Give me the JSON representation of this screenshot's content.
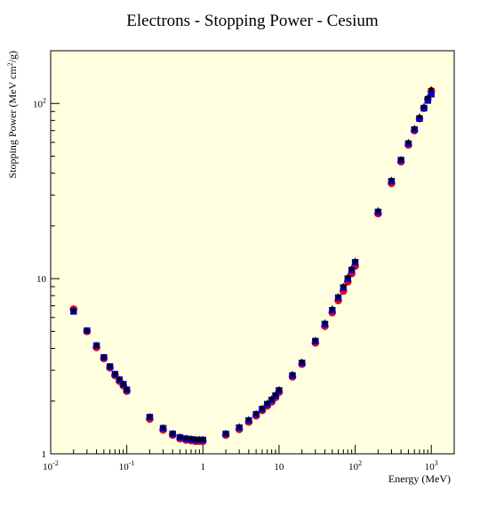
{
  "chart_data": {
    "type": "scatter",
    "title": "Electrons - Stopping Power - Cesium",
    "xlabel": "Energy (MeV)",
    "ylabel": "Stopping Power (MeV cm²/g)",
    "x_scale": "log",
    "y_scale": "log",
    "xlim": [
      0.01,
      2000
    ],
    "ylim": [
      1,
      200
    ],
    "grid": false,
    "x_tick_labels": [
      {
        "value": 0.01,
        "base": "10",
        "exp": "-2"
      },
      {
        "value": 0.1,
        "base": "10",
        "exp": "-1"
      },
      {
        "value": 1,
        "base": "1",
        "exp": ""
      },
      {
        "value": 10,
        "base": "10",
        "exp": ""
      },
      {
        "value": 100,
        "base": "10",
        "exp": "2"
      },
      {
        "value": 1000,
        "base": "10",
        "exp": "3"
      }
    ],
    "y_tick_labels": [
      {
        "value": 1,
        "base": "1",
        "exp": ""
      },
      {
        "value": 10,
        "base": "10",
        "exp": ""
      },
      {
        "value": 100,
        "base": "10",
        "exp": "2"
      }
    ],
    "series": [
      {
        "marker": "circle",
        "color": "#e8001c",
        "x": [
          0.02,
          0.03,
          0.04,
          0.05,
          0.06,
          0.07,
          0.08,
          0.09,
          0.1,
          0.2,
          0.3,
          0.4,
          0.5,
          0.6,
          0.7,
          0.8,
          0.9,
          1,
          2,
          3,
          4,
          5,
          6,
          7,
          8,
          9,
          10,
          15,
          20,
          30,
          40,
          50,
          60,
          70,
          80,
          90,
          100,
          200,
          300,
          400,
          500,
          600,
          700,
          800,
          900,
          1000
        ],
        "y": [
          6.7,
          5.0,
          4.05,
          3.5,
          3.1,
          2.8,
          2.6,
          2.45,
          2.28,
          1.58,
          1.37,
          1.28,
          1.22,
          1.2,
          1.19,
          1.18,
          1.18,
          1.18,
          1.28,
          1.38,
          1.52,
          1.65,
          1.77,
          1.88,
          1.98,
          2.1,
          2.25,
          2.75,
          3.25,
          4.3,
          5.35,
          6.4,
          7.5,
          8.5,
          9.6,
          10.7,
          11.8,
          23.5,
          35.0,
          46.5,
          58.0,
          70.0,
          82.0,
          94.0,
          106.0,
          118.0
        ]
      },
      {
        "marker": "square",
        "color": "#0000d8",
        "x": [
          0.02,
          0.03,
          0.04,
          0.05,
          0.06,
          0.07,
          0.08,
          0.09,
          0.1,
          0.2,
          0.3,
          0.4,
          0.5,
          0.6,
          0.7,
          0.8,
          0.9,
          1,
          2,
          3,
          4,
          5,
          6,
          7,
          8,
          9,
          10,
          15,
          20,
          30,
          40,
          50,
          60,
          70,
          80,
          90,
          100,
          200,
          300,
          400,
          500,
          600,
          700,
          800,
          900,
          1000
        ],
        "y": [
          6.5,
          5.05,
          4.15,
          3.55,
          3.15,
          2.85,
          2.65,
          2.5,
          2.32,
          1.62,
          1.4,
          1.3,
          1.24,
          1.22,
          1.21,
          1.2,
          1.2,
          1.2,
          1.3,
          1.41,
          1.55,
          1.68,
          1.8,
          1.92,
          2.03,
          2.15,
          2.3,
          2.8,
          3.3,
          4.4,
          5.5,
          6.6,
          7.8,
          8.9,
          10.0,
          11.2,
          12.4,
          24.0,
          36.0,
          47.5,
          59.0,
          71.0,
          82.0,
          94.0,
          104.0,
          113.0
        ]
      },
      {
        "marker": "star",
        "color": "#000000",
        "x": [
          0.02,
          0.03,
          0.04,
          0.05,
          0.06,
          0.07,
          0.08,
          0.09,
          0.1,
          0.2,
          0.3,
          0.4,
          0.5,
          0.6,
          0.7,
          0.8,
          0.9,
          1,
          2,
          3,
          4,
          5,
          6,
          7,
          8,
          9,
          10,
          15,
          20,
          30,
          40,
          50,
          60,
          70,
          80,
          90,
          100,
          200,
          300,
          400,
          500,
          600,
          700,
          800,
          900,
          1000
        ],
        "y": [
          6.6,
          5.05,
          4.15,
          3.55,
          3.15,
          2.85,
          2.65,
          2.5,
          2.33,
          1.63,
          1.41,
          1.31,
          1.25,
          1.23,
          1.22,
          1.21,
          1.21,
          1.21,
          1.31,
          1.43,
          1.57,
          1.7,
          1.82,
          1.95,
          2.06,
          2.18,
          2.33,
          2.85,
          3.35,
          4.45,
          5.6,
          6.75,
          7.9,
          9.05,
          10.2,
          11.4,
          12.6,
          24.5,
          36.5,
          48.0,
          60.0,
          72.0,
          84.0,
          96.0,
          108.0,
          120.0
        ]
      }
    ],
    "colors": {
      "plot_background": "#ffffe0",
      "frame": "#000000"
    }
  }
}
